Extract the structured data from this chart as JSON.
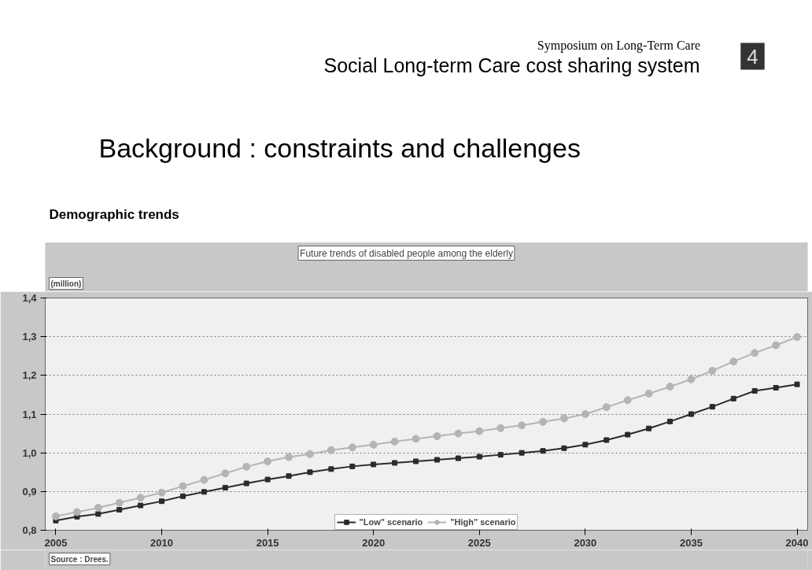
{
  "chart_data": {
    "type": "line",
    "title": "Future trends of disabled people among the elderly",
    "ylabel": "(million)",
    "annotations": [
      "Symposium on Long-Term Care",
      "Social Long-term Care cost sharing system",
      "4",
      "Background : constraints and challenges",
      "Demographic trends",
      "Source : Drees."
    ],
    "x": [
      2005,
      2006,
      2007,
      2008,
      2009,
      2010,
      2011,
      2012,
      2013,
      2014,
      2015,
      2016,
      2017,
      2018,
      2019,
      2020,
      2021,
      2022,
      2023,
      2024,
      2025,
      2026,
      2027,
      2028,
      2029,
      2030,
      2031,
      2032,
      2033,
      2034,
      2035,
      2036,
      2037,
      2038,
      2039,
      2040
    ],
    "series": [
      {
        "name": "\"Low\" scenario",
        "color": "#2b2b2b",
        "marker": "square",
        "values": [
          0.825,
          0.835,
          0.842,
          0.853,
          0.864,
          0.875,
          0.888,
          0.899,
          0.91,
          0.921,
          0.931,
          0.94,
          0.95,
          0.958,
          0.965,
          0.97,
          0.974,
          0.978,
          0.982,
          0.986,
          0.99,
          0.995,
          1.0,
          1.005,
          1.012,
          1.021,
          1.033,
          1.047,
          1.063,
          1.081,
          1.1,
          1.119,
          1.14,
          1.16,
          1.168,
          1.177
        ]
      },
      {
        "name": "\"High\" scenario",
        "color": "#b4b4b4",
        "marker": "circle",
        "values": [
          0.836,
          0.847,
          0.858,
          0.871,
          0.884,
          0.897,
          0.914,
          0.93,
          0.947,
          0.964,
          0.978,
          0.989,
          0.997,
          1.007,
          1.014,
          1.021,
          1.029,
          1.036,
          1.043,
          1.05,
          1.056,
          1.064,
          1.071,
          1.08,
          1.089,
          1.1,
          1.118,
          1.136,
          1.153,
          1.171,
          1.19,
          1.212,
          1.236,
          1.258,
          1.278,
          1.299
        ]
      }
    ],
    "xlim": [
      2004.5,
      2040.5
    ],
    "xticks": [
      2005,
      2010,
      2015,
      2020,
      2025,
      2030,
      2035,
      2040
    ],
    "ylim": [
      0.8,
      1.4
    ],
    "yticks": [
      {
        "value": 0.8,
        "label": "0,8"
      },
      {
        "value": 0.9,
        "label": "0,9"
      },
      {
        "value": 1.0,
        "label": "1,0"
      },
      {
        "value": 1.1,
        "label": "1,1"
      },
      {
        "value": 1.2,
        "label": "1,2"
      },
      {
        "value": 1.3,
        "label": "1,3"
      },
      {
        "value": 1.4,
        "label": "1,4"
      }
    ],
    "grid": "y",
    "legend": "bottom",
    "line_style": "solid"
  }
}
